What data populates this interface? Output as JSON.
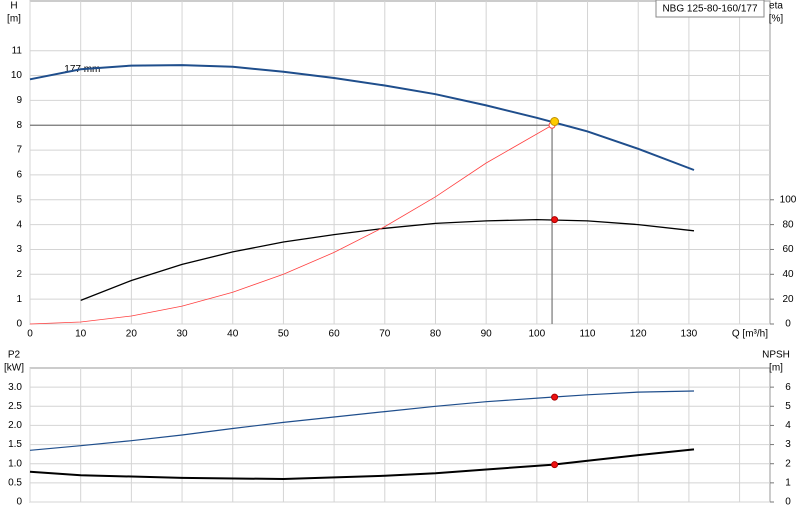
{
  "chart_data": [
    {
      "type": "line",
      "ylabel": "H",
      "yunit": "[m]",
      "y2label": "eta",
      "y2unit": "[%]",
      "xlabel": "Q [m³/h]",
      "legend": "NBG 125-80-160/177",
      "annotation": {
        "text": "177 mm",
        "x": 4,
        "y": 10.5
      },
      "xlim": [
        0,
        146
      ],
      "xticks": [
        0,
        10,
        20,
        30,
        40,
        50,
        60,
        70,
        80,
        90,
        100,
        110,
        120,
        130
      ],
      "xgrid": [
        0,
        10,
        20,
        30,
        40,
        50,
        60,
        70,
        80,
        90,
        100,
        110,
        120,
        130,
        140
      ],
      "ylim": [
        0,
        13
      ],
      "yticks": [
        0,
        1,
        2,
        3,
        4,
        5,
        6,
        7,
        8,
        9,
        10,
        11
      ],
      "y2lim": [
        0,
        260
      ],
      "y2ticks": [
        0,
        20,
        40,
        60,
        80,
        100
      ],
      "grid": true,
      "duty_point": {
        "x": 103,
        "y": 8
      },
      "series": [
        {
          "color": "#1f4e8c",
          "width": 2,
          "axis": "y",
          "x": [
            0,
            10,
            20,
            30,
            40,
            50,
            60,
            70,
            80,
            90,
            100,
            110,
            120,
            131
          ],
          "values": [
            9.85,
            10.25,
            10.4,
            10.42,
            10.35,
            10.15,
            9.9,
            9.6,
            9.25,
            8.8,
            8.3,
            7.75,
            7.05,
            6.2
          ]
        },
        {
          "color": "#000000",
          "width": 1.3,
          "axis": "y2",
          "x": [
            10,
            20,
            30,
            40,
            50,
            60,
            70,
            80,
            90,
            100,
            110,
            120,
            131
          ],
          "values": [
            19,
            35,
            48,
            58,
            66,
            72,
            77,
            81,
            83,
            84,
            83,
            80,
            75
          ]
        },
        {
          "color": "#ff4040",
          "width": 0.8,
          "axis": "y",
          "x": [
            0,
            10,
            20,
            30,
            40,
            50,
            60,
            70,
            80,
            90,
            103
          ],
          "values": [
            0,
            0.08,
            0.32,
            0.72,
            1.28,
            2.0,
            2.88,
            3.92,
            5.12,
            6.48,
            8.0
          ]
        }
      ],
      "points": [
        {
          "x": 103,
          "y": 8.0,
          "color": "#ffffff",
          "stroke": "#ff4040",
          "axis": "y",
          "r": 3
        },
        {
          "x": 103.5,
          "y": 8.15,
          "color": "#ffcc00",
          "stroke": "#c09000",
          "axis": "y",
          "r": 4
        },
        {
          "x": 103.5,
          "y": 84,
          "color": "#ee1111",
          "stroke": "#aa0000",
          "axis": "y2",
          "r": 3
        }
      ]
    },
    {
      "type": "line",
      "ylabel": "P2",
      "yunit": "[kW]",
      "y2label": "NPSH",
      "y2unit": "[m]",
      "xlim": [
        0,
        146
      ],
      "xgrid": [
        0,
        10,
        20,
        30,
        40,
        50,
        60,
        70,
        80,
        90,
        100,
        110,
        120,
        130,
        140
      ],
      "ylim": [
        0,
        3.5
      ],
      "yticks": [
        0,
        0.5,
        {
          "value": 1,
          "label": "1.0"
        },
        1.5,
        {
          "value": 2,
          "label": "2.0"
        },
        2.5,
        {
          "value": 3,
          "label": "3.0"
        }
      ],
      "y2lim": [
        0,
        7
      ],
      "y2ticks": [
        0,
        1,
        2,
        3,
        4,
        5,
        6
      ],
      "grid": true,
      "series": [
        {
          "color": "#1f4e8c",
          "width": 1.2,
          "axis": "y",
          "x": [
            0,
            10,
            20,
            30,
            40,
            50,
            60,
            70,
            80,
            90,
            103,
            110,
            120,
            131
          ],
          "values": [
            1.35,
            1.47,
            1.6,
            1.75,
            1.92,
            2.08,
            2.22,
            2.36,
            2.5,
            2.62,
            2.74,
            2.8,
            2.87,
            2.9
          ]
        },
        {
          "color": "#000000",
          "width": 2,
          "axis": "y2",
          "x": [
            0,
            10,
            30,
            50,
            70,
            80,
            90,
            103,
            110,
            120,
            131
          ],
          "values": [
            1.58,
            1.4,
            1.26,
            1.2,
            1.37,
            1.5,
            1.7,
            1.95,
            2.15,
            2.45,
            2.75
          ]
        }
      ],
      "points": [
        {
          "x": 103.5,
          "y": 2.74,
          "color": "#ee1111",
          "stroke": "#aa0000",
          "axis": "y",
          "r": 3
        },
        {
          "x": 103.5,
          "y": 1.95,
          "color": "#ee1111",
          "stroke": "#aa0000",
          "axis": "y2",
          "r": 3
        }
      ]
    }
  ]
}
